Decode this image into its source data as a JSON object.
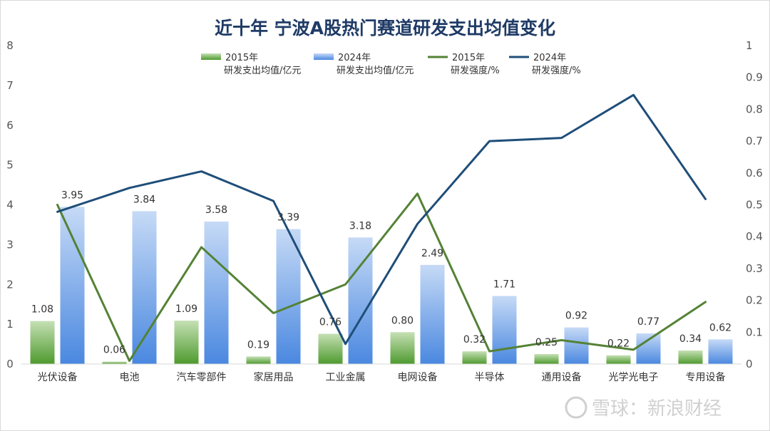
{
  "chart_data": {
    "type": "bar",
    "title": "近十年 宁波A股热门赛道研发支出均值变化",
    "categories": [
      "光伏设备",
      "电池",
      "汽车零部件",
      "家居用品",
      "工业金属",
      "电网设备",
      "半导体",
      "通用设备",
      "光学光电子",
      "专用设备"
    ],
    "y_left": {
      "min": 0,
      "max": 8,
      "ticks": [
        "0",
        "1",
        "2",
        "3",
        "4",
        "5",
        "6",
        "7",
        "8"
      ]
    },
    "y_right": {
      "min": 0,
      "max": 1,
      "ticks": [
        "0",
        "0.1",
        "0.2",
        "0.3",
        "0.4",
        "0.5",
        "0.6",
        "0.7",
        "0.8",
        "0.9",
        "1"
      ]
    },
    "bar_series": [
      {
        "name": "2015年研发支出均值/亿元",
        "legend_lines": [
          "2015年",
          "研发支出均值/亿元"
        ],
        "values": [
          1.08,
          0.06,
          1.09,
          0.19,
          0.76,
          0.8,
          0.32,
          0.25,
          0.22,
          0.34
        ],
        "labels": [
          "1.08",
          "0.06",
          "1.09",
          "0.19",
          "0.76",
          "0.80",
          "0.32",
          "0.25",
          "0.22",
          "0.34"
        ],
        "color_top": "#c5e0b4",
        "color_bottom": "#4e9a2e"
      },
      {
        "name": "2024年研发支出均值/亿元",
        "legend_lines": [
          "2024年",
          "研发支出均值/亿元"
        ],
        "values": [
          3.95,
          3.84,
          3.58,
          3.39,
          3.18,
          2.49,
          1.71,
          0.92,
          0.77,
          0.62
        ],
        "labels": [
          "3.95",
          "3.84",
          "3.58",
          "3.39",
          "3.18",
          "2.49",
          "1.71",
          "0.92",
          "0.77",
          "0.62"
        ],
        "color_top": "#c6daf6",
        "color_bottom": "#4a88e0"
      }
    ],
    "line_series": [
      {
        "name": "2015年研发强度/%",
        "legend_lines": [
          "2015年",
          "研发强度/%"
        ],
        "axis": "right",
        "values": [
          0.5,
          0.01,
          0.367,
          0.16,
          0.25,
          0.535,
          0.04,
          0.075,
          0.045,
          0.195
        ],
        "color": "#548235"
      },
      {
        "name": "2024年研发强度/%",
        "legend_lines": [
          "2024年",
          "研发强度/%"
        ],
        "axis": "right",
        "values": [
          0.478,
          0.553,
          0.605,
          0.512,
          0.063,
          0.44,
          0.7,
          0.71,
          0.845,
          0.518
        ],
        "color": "#1f4e79"
      }
    ]
  },
  "watermark": "雪球：新浪财经"
}
